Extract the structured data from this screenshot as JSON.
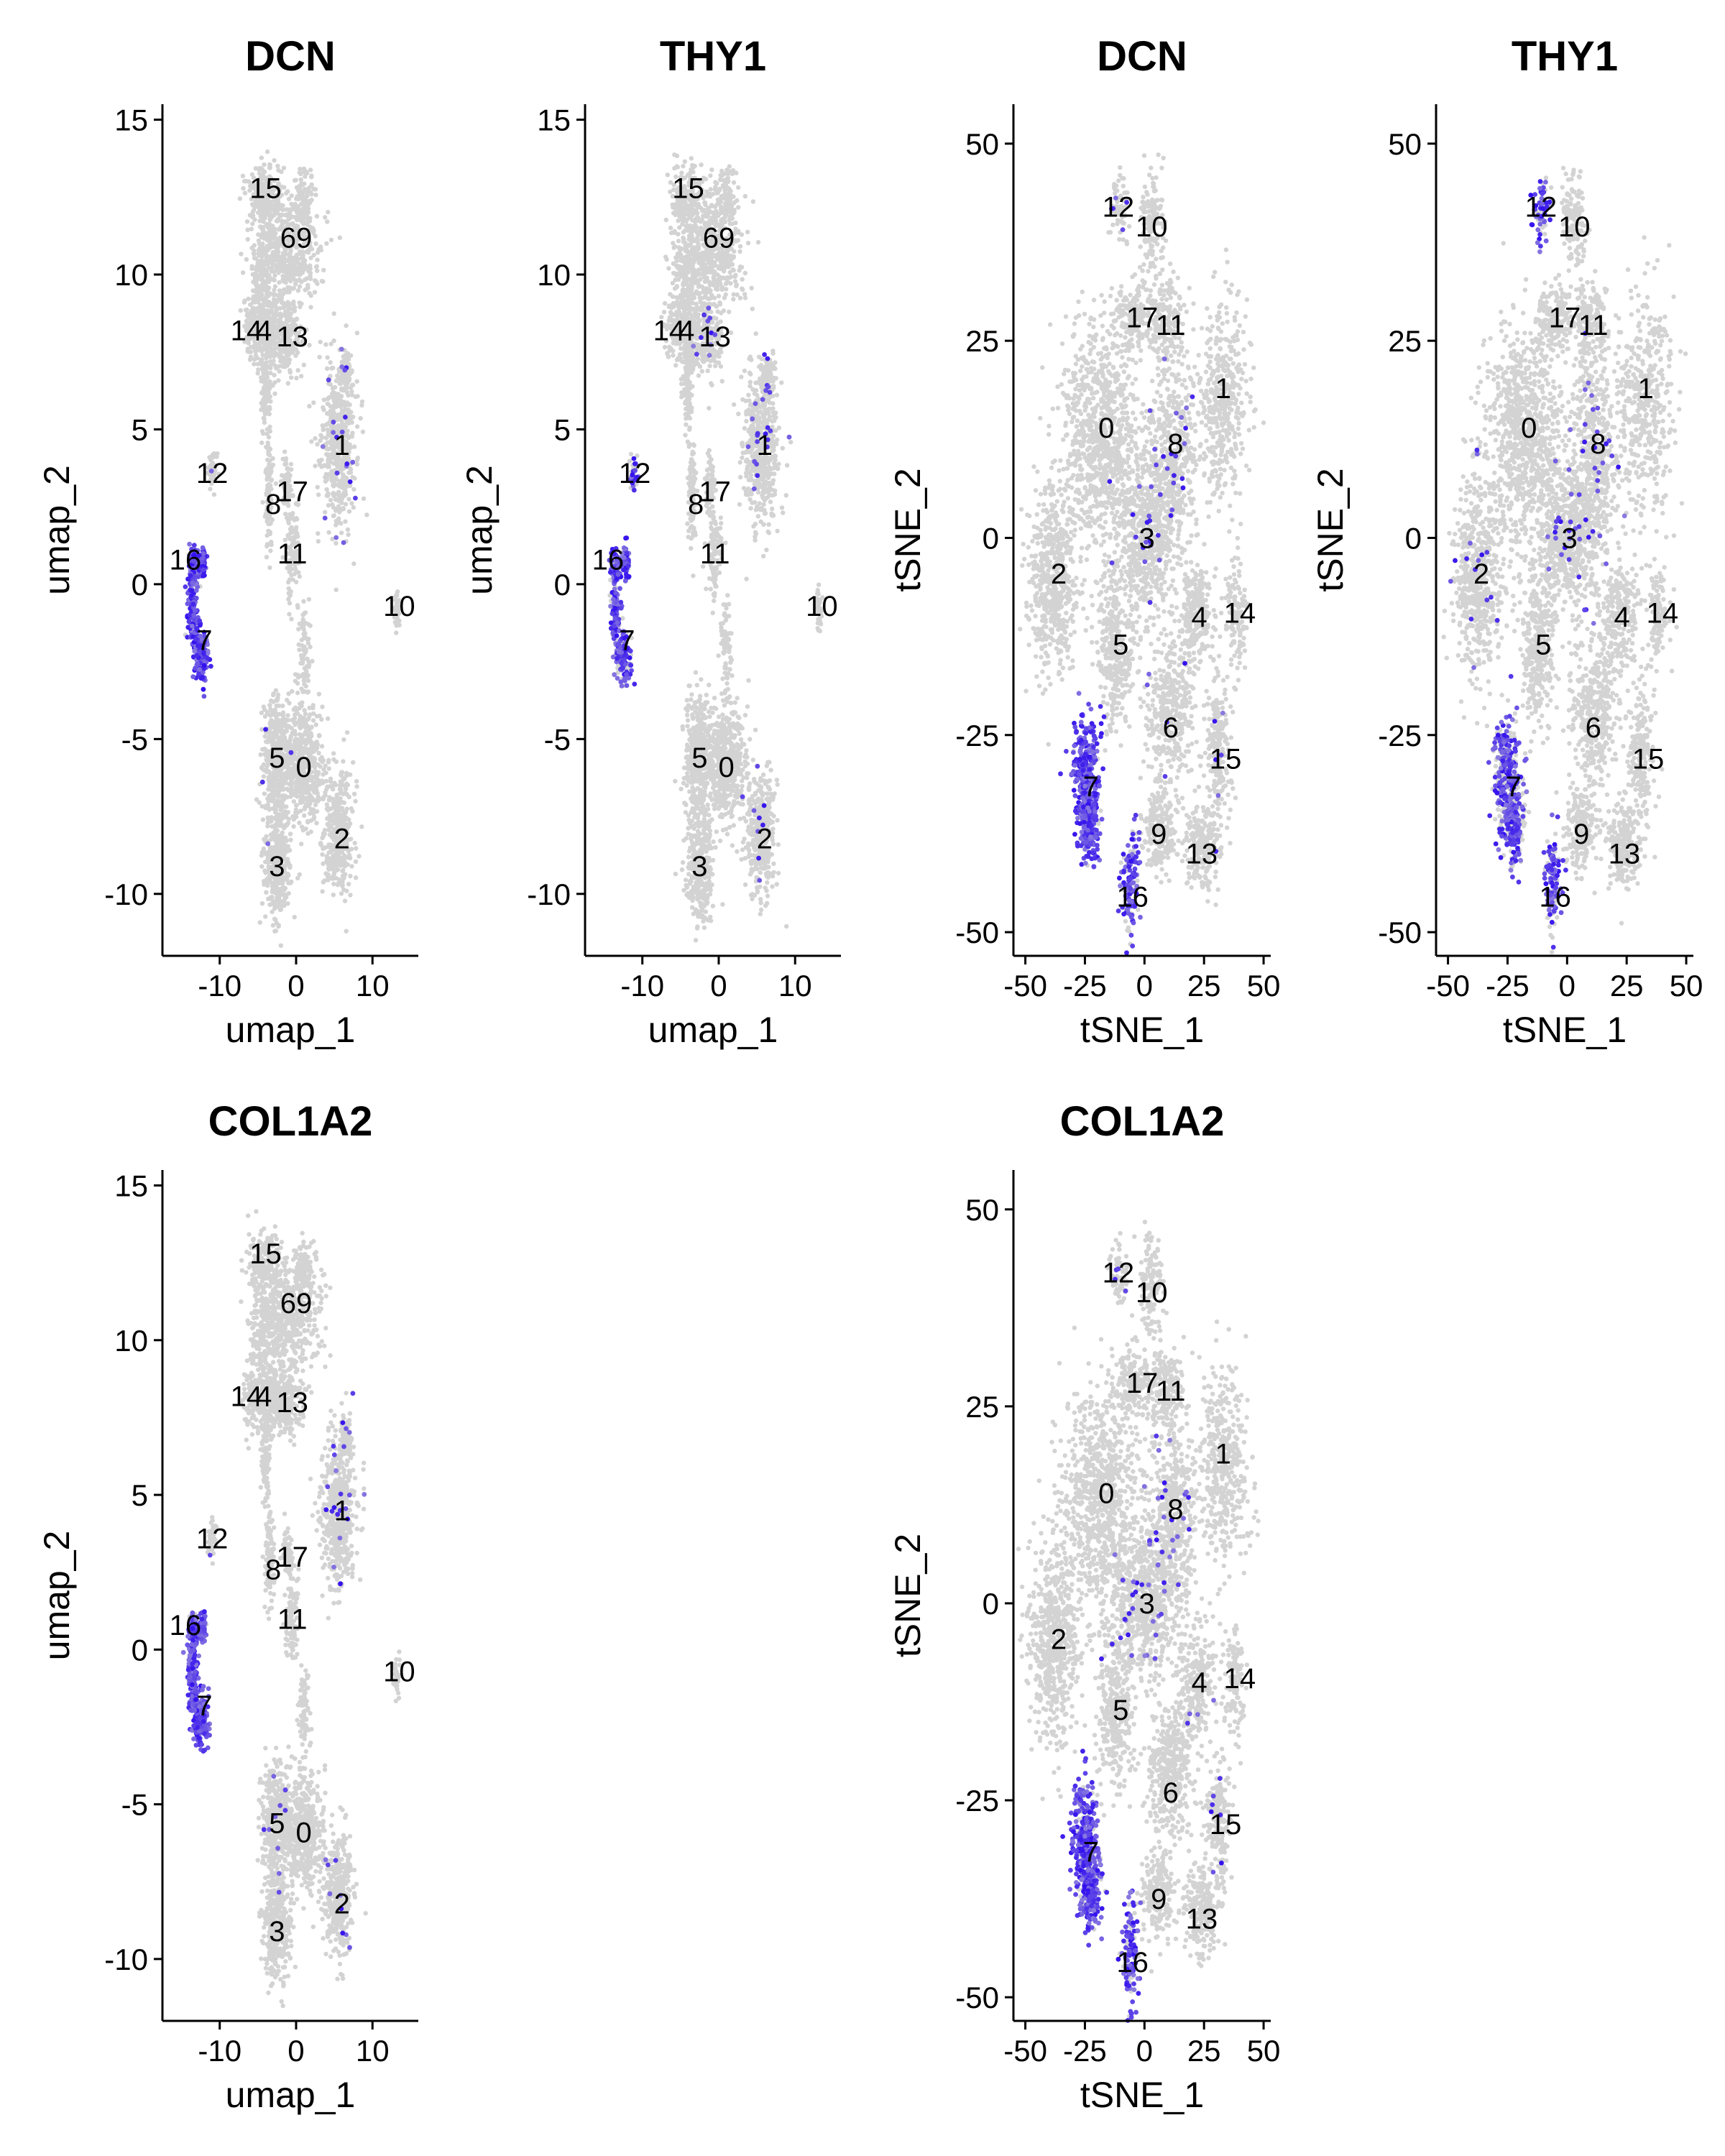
{
  "chart_data": [
    {
      "type": "scatter",
      "title": "DCN",
      "xlabel": "umap_1",
      "ylabel": "umap_2",
      "xlim": [
        -17.5,
        16
      ],
      "ylim": [
        -12,
        15.5
      ],
      "xticks": [
        -10,
        0,
        10
      ],
      "yticks": [
        -10,
        -5,
        0,
        5,
        10,
        15
      ],
      "grid": false,
      "embedding": "umap",
      "expression": {
        "7": 0.95,
        "16": 0.9,
        "12": 0.05,
        "1": 0.03,
        "5": 0.02
      },
      "cluster_labels": [
        {
          "label": "15",
          "x": -4,
          "y": 12.8
        },
        {
          "label": "69",
          "x": 0,
          "y": 11.2
        },
        {
          "label": "14",
          "x": -6.5,
          "y": 8.2
        },
        {
          "label": "4",
          "x": -4.2,
          "y": 8.2
        },
        {
          "label": "13",
          "x": -0.5,
          "y": 8.0
        },
        {
          "label": "1",
          "x": 6,
          "y": 4.5
        },
        {
          "label": "12",
          "x": -11,
          "y": 3.6
        },
        {
          "label": "8",
          "x": -3,
          "y": 2.6
        },
        {
          "label": "17",
          "x": -0.5,
          "y": 3.0
        },
        {
          "label": "11",
          "x": -0.5,
          "y": 1.0
        },
        {
          "label": "16",
          "x": -14.5,
          "y": 0.8
        },
        {
          "label": "10",
          "x": 13.5,
          "y": -0.7
        },
        {
          "label": "7",
          "x": -12,
          "y": -1.8
        },
        {
          "label": "5",
          "x": -2.5,
          "y": -5.6
        },
        {
          "label": "0",
          "x": 1,
          "y": -5.9
        },
        {
          "label": "2",
          "x": 6,
          "y": -8.2
        },
        {
          "label": "3",
          "x": -2.5,
          "y": -9.1
        }
      ]
    },
    {
      "type": "scatter",
      "title": "THY1",
      "xlabel": "umap_1",
      "ylabel": "umap_2",
      "xlim": [
        -17.5,
        16
      ],
      "ylim": [
        -12,
        15.5
      ],
      "xticks": [
        -10,
        0,
        10
      ],
      "yticks": [
        -10,
        -5,
        0,
        5,
        10,
        15
      ],
      "grid": false,
      "embedding": "umap",
      "expression": {
        "7": 0.6,
        "16": 0.65,
        "12": 0.5,
        "13": 0.04,
        "1": 0.04,
        "2": 0.03
      },
      "cluster_labels": [
        {
          "label": "15",
          "x": -4,
          "y": 12.8
        },
        {
          "label": "69",
          "x": 0,
          "y": 11.2
        },
        {
          "label": "14",
          "x": -6.5,
          "y": 8.2
        },
        {
          "label": "4",
          "x": -4.2,
          "y": 8.2
        },
        {
          "label": "13",
          "x": -0.5,
          "y": 8.0
        },
        {
          "label": "1",
          "x": 6,
          "y": 4.5
        },
        {
          "label": "12",
          "x": -11,
          "y": 3.6
        },
        {
          "label": "8",
          "x": -3,
          "y": 2.6
        },
        {
          "label": "17",
          "x": -0.5,
          "y": 3.0
        },
        {
          "label": "11",
          "x": -0.5,
          "y": 1.0
        },
        {
          "label": "16",
          "x": -14.5,
          "y": 0.8
        },
        {
          "label": "10",
          "x": 13.5,
          "y": -0.7
        },
        {
          "label": "7",
          "x": -12,
          "y": -1.8
        },
        {
          "label": "5",
          "x": -2.5,
          "y": -5.6
        },
        {
          "label": "0",
          "x": 1,
          "y": -5.9
        },
        {
          "label": "2",
          "x": 6,
          "y": -8.2
        },
        {
          "label": "3",
          "x": -2.5,
          "y": -9.1
        }
      ]
    },
    {
      "type": "scatter",
      "title": "DCN",
      "xlabel": "tSNE_1",
      "ylabel": "tSNE_2",
      "xlim": [
        -55,
        53
      ],
      "ylim": [
        -53,
        55
      ],
      "xticks": [
        -50,
        -25,
        0,
        25,
        50
      ],
      "yticks": [
        -50,
        -25,
        0,
        25,
        50
      ],
      "grid": false,
      "embedding": "tsne",
      "expression": {
        "7": 0.95,
        "16": 0.8,
        "12": 0.05,
        "8": 0.04,
        "3": 0.03,
        "15": 0.03,
        "6": 0.02
      },
      "cluster_labels": [
        {
          "label": "12",
          "x": -11,
          "y": 42
        },
        {
          "label": "10",
          "x": 3,
          "y": 39.5
        },
        {
          "label": "17",
          "x": -1,
          "y": 28
        },
        {
          "label": "11",
          "x": 11,
          "y": 27
        },
        {
          "label": "1",
          "x": 33,
          "y": 19
        },
        {
          "label": "0",
          "x": -16,
          "y": 14
        },
        {
          "label": "8",
          "x": 13,
          "y": 12
        },
        {
          "label": "3",
          "x": 1,
          "y": 0
        },
        {
          "label": "2",
          "x": -36,
          "y": -4.5
        },
        {
          "label": "4",
          "x": 23,
          "y": -10
        },
        {
          "label": "14",
          "x": 40,
          "y": -9.5
        },
        {
          "label": "5",
          "x": -10,
          "y": -13.5
        },
        {
          "label": "6",
          "x": 11,
          "y": -24
        },
        {
          "label": "15",
          "x": 34,
          "y": -28
        },
        {
          "label": "7",
          "x": -22.5,
          "y": -31.5
        },
        {
          "label": "9",
          "x": 6,
          "y": -37.5
        },
        {
          "label": "13",
          "x": 24,
          "y": -40
        },
        {
          "label": "16",
          "x": -5,
          "y": -45.5
        }
      ]
    },
    {
      "type": "scatter",
      "title": "THY1",
      "xlabel": "tSNE_1",
      "ylabel": "tSNE_2",
      "xlim": [
        -55,
        53
      ],
      "ylim": [
        -53,
        55
      ],
      "xticks": [
        -50,
        -25,
        0,
        25,
        50
      ],
      "yticks": [
        -50,
        -25,
        0,
        25,
        50
      ],
      "grid": false,
      "embedding": "tsne",
      "expression": {
        "7": 0.55,
        "16": 0.55,
        "12": 0.55,
        "8": 0.04,
        "3": 0.04,
        "2": 0.02
      },
      "cluster_labels": [
        {
          "label": "12",
          "x": -11,
          "y": 42
        },
        {
          "label": "10",
          "x": 3,
          "y": 39.5
        },
        {
          "label": "17",
          "x": -1,
          "y": 28
        },
        {
          "label": "11",
          "x": 11,
          "y": 27
        },
        {
          "label": "1",
          "x": 33,
          "y": 19
        },
        {
          "label": "0",
          "x": -16,
          "y": 14
        },
        {
          "label": "8",
          "x": 13,
          "y": 12
        },
        {
          "label": "3",
          "x": 1,
          "y": 0
        },
        {
          "label": "2",
          "x": -36,
          "y": -4.5
        },
        {
          "label": "4",
          "x": 23,
          "y": -10
        },
        {
          "label": "14",
          "x": 40,
          "y": -9.5
        },
        {
          "label": "5",
          "x": -10,
          "y": -13.5
        },
        {
          "label": "6",
          "x": 11,
          "y": -24
        },
        {
          "label": "15",
          "x": 34,
          "y": -28
        },
        {
          "label": "7",
          "x": -22.5,
          "y": -31.5
        },
        {
          "label": "9",
          "x": 6,
          "y": -37.5
        },
        {
          "label": "13",
          "x": 24,
          "y": -40
        },
        {
          "label": "16",
          "x": -5,
          "y": -45.5
        }
      ]
    },
    {
      "type": "scatter",
      "title": "COL1A2",
      "xlabel": "umap_1",
      "ylabel": "umap_2",
      "xlim": [
        -17.5,
        16
      ],
      "ylim": [
        -12,
        15.5
      ],
      "xticks": [
        -10,
        0,
        10
      ],
      "yticks": [
        -10,
        -5,
        0,
        5,
        10,
        15
      ],
      "grid": false,
      "embedding": "umap",
      "expression": {
        "7": 0.95,
        "16": 0.85,
        "12": 0.1,
        "1": 0.04,
        "5": 0.03,
        "2": 0.02
      },
      "cluster_labels": [
        {
          "label": "15",
          "x": -4,
          "y": 12.8
        },
        {
          "label": "69",
          "x": 0,
          "y": 11.2
        },
        {
          "label": "14",
          "x": -6.5,
          "y": 8.2
        },
        {
          "label": "4",
          "x": -4.2,
          "y": 8.2
        },
        {
          "label": "13",
          "x": -0.5,
          "y": 8.0
        },
        {
          "label": "1",
          "x": 6,
          "y": 4.5
        },
        {
          "label": "12",
          "x": -11,
          "y": 3.6
        },
        {
          "label": "8",
          "x": -3,
          "y": 2.6
        },
        {
          "label": "17",
          "x": -0.5,
          "y": 3.0
        },
        {
          "label": "11",
          "x": -0.5,
          "y": 1.0
        },
        {
          "label": "16",
          "x": -14.5,
          "y": 0.8
        },
        {
          "label": "10",
          "x": 13.5,
          "y": -0.7
        },
        {
          "label": "7",
          "x": -12,
          "y": -1.8
        },
        {
          "label": "5",
          "x": -2.5,
          "y": -5.6
        },
        {
          "label": "0",
          "x": 1,
          "y": -5.9
        },
        {
          "label": "2",
          "x": 6,
          "y": -8.2
        },
        {
          "label": "3",
          "x": -2.5,
          "y": -9.1
        }
      ]
    },
    {
      "type": "scatter",
      "title": "COL1A2",
      "xlabel": "tSNE_1",
      "ylabel": "tSNE_2",
      "xlim": [
        -55,
        53
      ],
      "ylim": [
        -53,
        55
      ],
      "xticks": [
        -50,
        -25,
        0,
        25,
        50
      ],
      "yticks": [
        -50,
        -25,
        0,
        25,
        50
      ],
      "grid": false,
      "embedding": "tsne",
      "expression": {
        "7": 0.85,
        "16": 0.7,
        "12": 0.05,
        "8": 0.05,
        "3": 0.04,
        "15": 0.03,
        "4": 0.02
      },
      "cluster_labels": [
        {
          "label": "12",
          "x": -11,
          "y": 42
        },
        {
          "label": "10",
          "x": 3,
          "y": 39.5
        },
        {
          "label": "17",
          "x": -1,
          "y": 28
        },
        {
          "label": "11",
          "x": 11,
          "y": 27
        },
        {
          "label": "1",
          "x": 33,
          "y": 19
        },
        {
          "label": "0",
          "x": -16,
          "y": 14
        },
        {
          "label": "8",
          "x": 13,
          "y": 12
        },
        {
          "label": "3",
          "x": 1,
          "y": 0
        },
        {
          "label": "2",
          "x": -36,
          "y": -4.5
        },
        {
          "label": "4",
          "x": 23,
          "y": -10
        },
        {
          "label": "14",
          "x": 40,
          "y": -9.5
        },
        {
          "label": "5",
          "x": -10,
          "y": -13.5
        },
        {
          "label": "6",
          "x": 11,
          "y": -24
        },
        {
          "label": "15",
          "x": 34,
          "y": -28
        },
        {
          "label": "7",
          "x": -22.5,
          "y": -31.5
        },
        {
          "label": "9",
          "x": 6,
          "y": -37.5
        },
        {
          "label": "13",
          "x": 24,
          "y": -40
        },
        {
          "label": "16",
          "x": -5,
          "y": -45.5
        }
      ]
    }
  ],
  "colors": {
    "background_cells": "#d3d3d3",
    "expression_low": "#d3d3d3",
    "expression_high": "#3311ee",
    "axis": "#000000"
  }
}
